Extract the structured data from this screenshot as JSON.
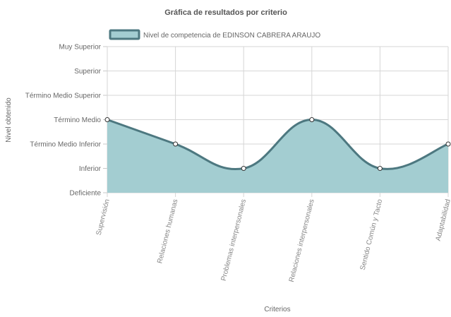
{
  "chart_data": {
    "type": "area",
    "title": "Gráfica de resultados por criterio",
    "xlabel": "Criterios",
    "ylabel": "Nivel obtenido",
    "categories": [
      "Supervisión",
      "Relaciones humanas",
      "Problemas interpersonales",
      "Relaciones interpersonales",
      "Sentido Común y Tacto",
      "Adaptabilidad"
    ],
    "y_levels": [
      "Deficiente",
      "Inferior",
      "Término Medio Inferior",
      "Término Medio",
      "Término Medio Superior",
      "Superior",
      "Muy Superior"
    ],
    "series": [
      {
        "name": "Nivel de competencia de EDINSON CABRERA ARAUJO",
        "values": [
          3,
          2,
          1,
          3,
          1,
          2
        ]
      }
    ],
    "ylim": [
      0,
      6
    ],
    "grid": true,
    "legend_position": "top-left",
    "colors": {
      "fill": "#a3cdd1",
      "line": "#4d7880",
      "grid": "#d6d6d6",
      "point_fill": "#ffffff",
      "point_stroke": "#333333"
    }
  }
}
